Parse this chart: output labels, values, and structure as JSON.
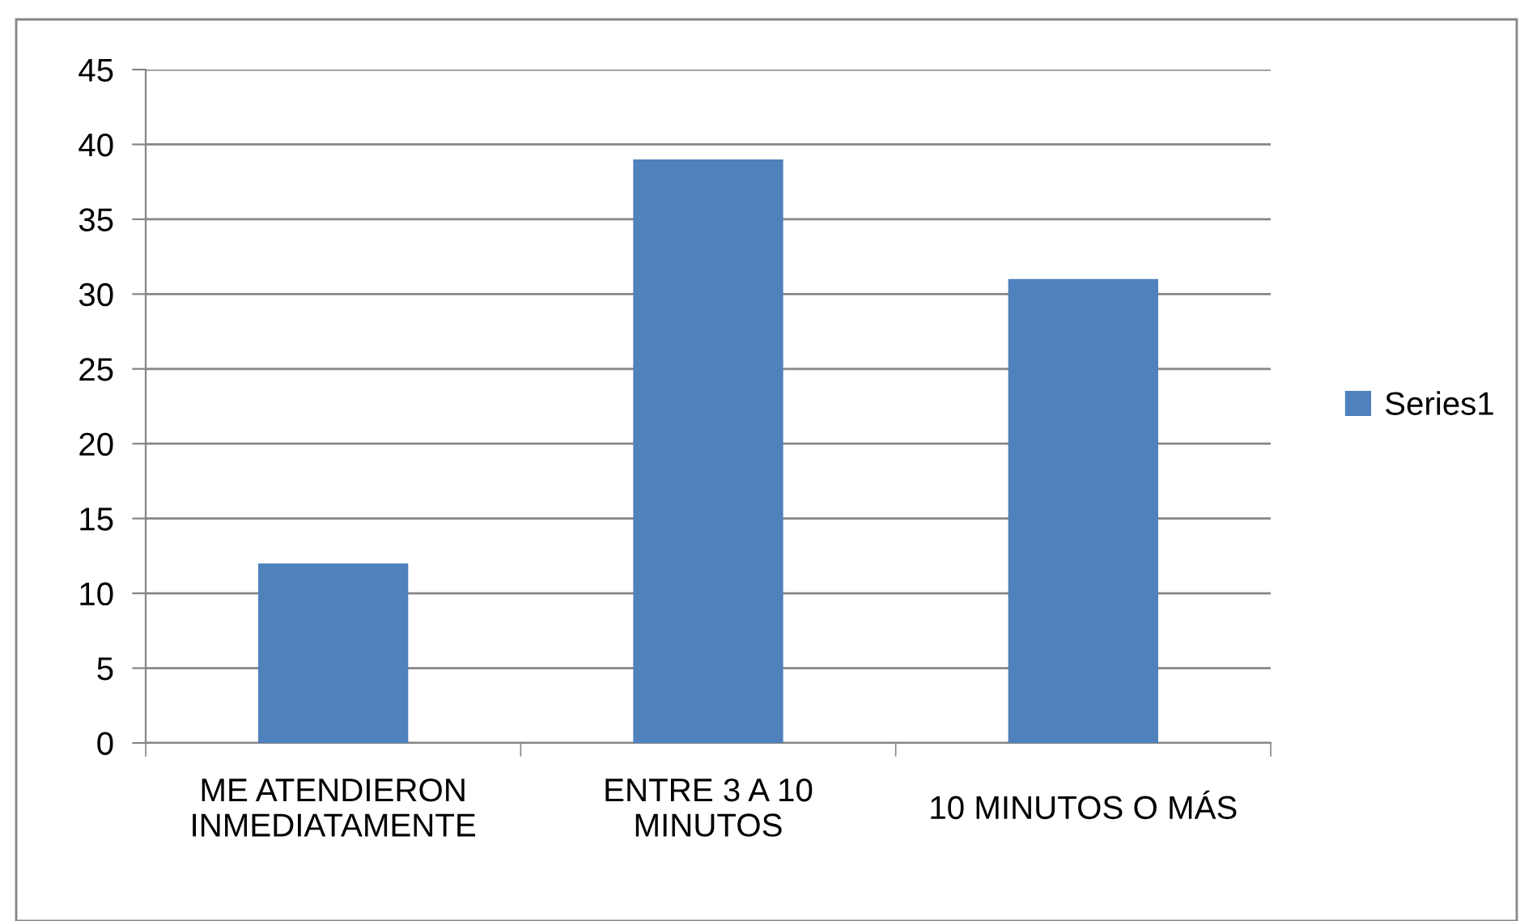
{
  "chart_data": {
    "type": "bar",
    "categories": [
      "ME ATENDIERON\nINMEDIATAMENTE",
      "ENTRE 3 A 10\nMINUTOS",
      "10 MINUTOS O MÁS"
    ],
    "series": [
      {
        "name": "Series1",
        "color": "#4f81bd",
        "values": [
          12,
          39,
          31
        ]
      }
    ],
    "ylim": [
      0,
      45
    ],
    "yticks": [
      0,
      5,
      10,
      15,
      20,
      25,
      30,
      35,
      40,
      45
    ],
    "grid": "y",
    "legend": "right"
  }
}
